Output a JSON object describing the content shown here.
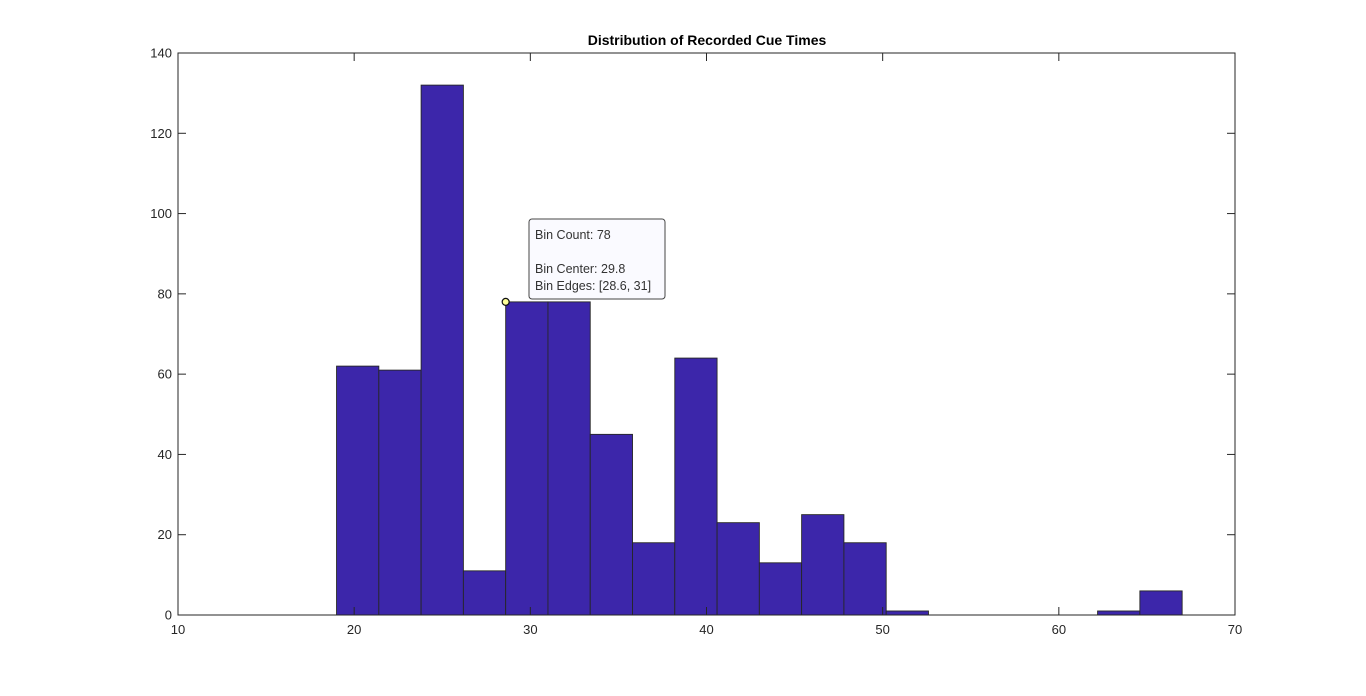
{
  "chart_data": {
    "type": "bar",
    "title": "Distribution of Recorded Cue Times",
    "xlabel": "",
    "ylabel": "",
    "xlim": [
      10,
      70
    ],
    "ylim": [
      0,
      140
    ],
    "xticks": [
      10,
      20,
      30,
      40,
      50,
      60,
      70
    ],
    "yticks": [
      0,
      20,
      40,
      60,
      80,
      100,
      120,
      140
    ],
    "grid": false,
    "bar_color": "#3c26aa",
    "bin_edges": [
      19.0,
      21.4,
      23.8,
      26.2,
      28.6,
      31.0,
      33.4,
      35.8,
      38.2,
      40.6,
      43.0,
      45.4,
      47.8,
      50.2,
      52.6,
      55.0,
      57.4,
      59.8,
      62.2,
      64.6,
      67.0
    ],
    "values": [
      62,
      61,
      132,
      11,
      78,
      78,
      45,
      18,
      64,
      23,
      13,
      25,
      18,
      1,
      0,
      0,
      0,
      0,
      1,
      6
    ]
  },
  "datatip": {
    "x": 28.6,
    "y": 78,
    "count_line": "Bin Count: 78",
    "center_line": "Bin Center: 29.8",
    "edges_line": "Bin Edges: [28.6, 31]"
  }
}
